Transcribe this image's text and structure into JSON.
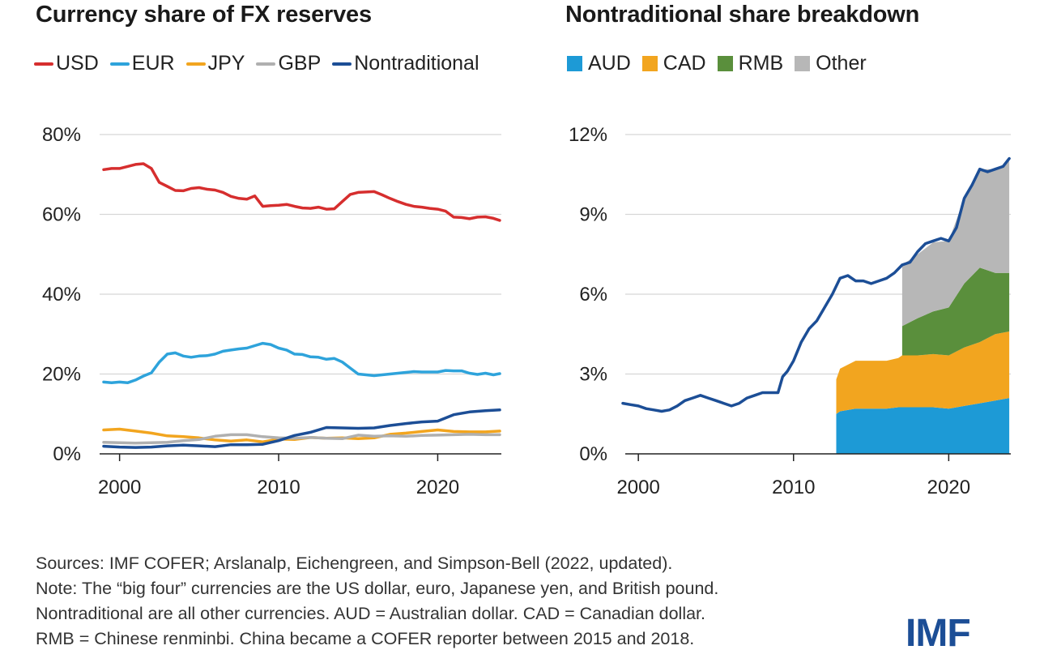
{
  "left_chart": {
    "title": "Currency share of FX reserves",
    "legend": [
      {
        "label": "USD",
        "color": "#d62e2e"
      },
      {
        "label": "EUR",
        "color": "#2ea3db"
      },
      {
        "label": "JPY",
        "color": "#f2a51f"
      },
      {
        "label": "GBP",
        "color": "#b0b0b0"
      },
      {
        "label": "Nontraditional",
        "color": "#1c4e96"
      }
    ],
    "y_ticks": [
      "80%",
      "60%",
      "40%",
      "20%",
      "0%"
    ],
    "x_ticks": [
      "2000",
      "2010",
      "2020"
    ]
  },
  "right_chart": {
    "title": "Nontraditional share breakdown",
    "legend": [
      {
        "label": "AUD",
        "color": "#1d9ad6"
      },
      {
        "label": "CAD",
        "color": "#f2a51f"
      },
      {
        "label": "RMB",
        "color": "#5a8f3c"
      },
      {
        "label": "Other",
        "color": "#b7b7b7"
      }
    ],
    "y_ticks": [
      "12%",
      "9%",
      "6%",
      "3%",
      "0%"
    ],
    "x_ticks": [
      "2000",
      "2010",
      "2020"
    ]
  },
  "chart_data": [
    {
      "type": "line",
      "title": "Currency share of FX reserves",
      "ylim": [
        0,
        80
      ],
      "xlim": [
        1999,
        2024
      ],
      "series": [
        {
          "name": "USD",
          "color": "#d62e2e",
          "x": [
            1999,
            1999.5,
            2000,
            2000.5,
            2001,
            2001.5,
            2002,
            2002.5,
            2003,
            2003.5,
            2004,
            2004.5,
            2005,
            2005.5,
            2006,
            2006.5,
            2007,
            2007.5,
            2008,
            2008.5,
            2009,
            2009.5,
            2010,
            2010.5,
            2011,
            2011.5,
            2012,
            2012.5,
            2013,
            2013.5,
            2014,
            2014.5,
            2015,
            2015.5,
            2016,
            2016.5,
            2017,
            2017.5,
            2018,
            2018.5,
            2019,
            2019.5,
            2020,
            2020.5,
            2021,
            2021.5,
            2022,
            2022.5,
            2023,
            2023.5,
            2023.9
          ],
          "values": [
            71.2,
            71.5,
            71.5,
            72,
            72.5,
            72.7,
            71.5,
            68,
            67,
            66,
            65.9,
            66.5,
            66.7,
            66.3,
            66.1,
            65.5,
            64.5,
            64,
            63.8,
            64.6,
            62,
            62.2,
            62.3,
            62.5,
            62,
            61.6,
            61.5,
            61.8,
            61.3,
            61.4,
            63.2,
            65,
            65.5,
            65.6,
            65.7,
            64.9,
            64,
            63.2,
            62.5,
            62,
            61.8,
            61.5,
            61.3,
            60.8,
            59.3,
            59.2,
            58.9,
            59.3,
            59.4,
            59,
            58.5
          ]
        },
        {
          "name": "EUR",
          "color": "#2ea3db",
          "x": [
            1999,
            1999.5,
            2000,
            2000.5,
            2001,
            2001.5,
            2002,
            2002.5,
            2003,
            2003.5,
            2004,
            2004.5,
            2005,
            2005.5,
            2006,
            2006.5,
            2007,
            2007.5,
            2008,
            2008.5,
            2009,
            2009.5,
            2010,
            2010.5,
            2011,
            2011.5,
            2012,
            2012.5,
            2013,
            2013.5,
            2014,
            2014.5,
            2015,
            2015.5,
            2016,
            2016.5,
            2017,
            2017.5,
            2018,
            2018.5,
            2019,
            2019.5,
            2020,
            2020.5,
            2021,
            2021.5,
            2022,
            2022.5,
            2023,
            2023.5,
            2023.9
          ],
          "values": [
            18,
            17.8,
            18,
            17.8,
            18.5,
            19.5,
            20.3,
            23,
            25,
            25.3,
            24.5,
            24.2,
            24.5,
            24.6,
            25,
            25.7,
            26,
            26.3,
            26.5,
            27.1,
            27.7,
            27.4,
            26.5,
            26,
            25,
            24.9,
            24.3,
            24.2,
            23.7,
            23.9,
            23,
            21.5,
            20,
            19.8,
            19.6,
            19.8,
            20,
            20.2,
            20.4,
            20.6,
            20.5,
            20.5,
            20.5,
            20.9,
            20.8,
            20.8,
            20.2,
            19.9,
            20.2,
            19.8,
            20.1
          ]
        },
        {
          "name": "JPY",
          "color": "#f2a51f",
          "x": [
            1999,
            2000,
            2001,
            2002,
            2003,
            2004,
            2005,
            2006,
            2007,
            2008,
            2009,
            2010,
            2011,
            2012,
            2013,
            2014,
            2015,
            2016,
            2017,
            2018,
            2019,
            2020,
            2021,
            2022,
            2023,
            2023.9
          ],
          "values": [
            6.0,
            6.2,
            5.7,
            5.2,
            4.5,
            4.3,
            4.0,
            3.5,
            3.2,
            3.5,
            3.0,
            3.7,
            3.6,
            4.1,
            3.9,
            4.0,
            3.8,
            4.0,
            4.9,
            5.2,
            5.6,
            6.0,
            5.6,
            5.5,
            5.5,
            5.7
          ]
        },
        {
          "name": "GBP",
          "color": "#b0b0b0",
          "x": [
            1999,
            2000,
            2001,
            2002,
            2003,
            2004,
            2005,
            2006,
            2007,
            2008,
            2009,
            2010,
            2011,
            2012,
            2013,
            2014,
            2015,
            2016,
            2017,
            2018,
            2019,
            2020,
            2021,
            2022,
            2023,
            2023.9
          ],
          "values": [
            2.9,
            2.8,
            2.7,
            2.8,
            2.9,
            3.3,
            3.6,
            4.4,
            4.8,
            4.8,
            4.3,
            4.0,
            3.9,
            4.1,
            3.9,
            3.8,
            4.7,
            4.4,
            4.5,
            4.4,
            4.6,
            4.7,
            4.8,
            4.9,
            4.8,
            4.8
          ]
        },
        {
          "name": "Nontraditional",
          "color": "#1c4e96",
          "x": [
            1999,
            2000,
            2001,
            2002,
            2003,
            2004,
            2005,
            2006,
            2007,
            2008,
            2009,
            2010,
            2011,
            2012,
            2013,
            2014,
            2015,
            2016,
            2017,
            2018,
            2019,
            2020,
            2021,
            2022,
            2023,
            2023.9
          ],
          "values": [
            1.9,
            1.7,
            1.6,
            1.7,
            2.0,
            2.2,
            2.0,
            1.8,
            2.3,
            2.3,
            2.4,
            3.3,
            4.6,
            5.4,
            6.6,
            6.5,
            6.4,
            6.5,
            7.1,
            7.6,
            8.0,
            8.2,
            9.8,
            10.5,
            10.8,
            11.0
          ]
        }
      ]
    },
    {
      "type": "area",
      "title": "Nontraditional share breakdown",
      "ylim": [
        0,
        12
      ],
      "xlim": [
        1999,
        2024
      ],
      "total_line": {
        "name": "Nontraditional",
        "color": "#1c4e96",
        "x": [
          1999,
          1999.5,
          2000,
          2000.5,
          2001,
          2001.5,
          2002,
          2002.5,
          2003,
          2003.5,
          2004,
          2004.5,
          2005,
          2005.5,
          2006,
          2006.5,
          2007,
          2007.5,
          2008,
          2008.5,
          2009,
          2009.3,
          2009.6,
          2010,
          2010.5,
          2011,
          2011.5,
          2012,
          2012.5,
          2013,
          2013.5,
          2014,
          2014.5,
          2015,
          2015.5,
          2016,
          2016.5,
          2017,
          2017.5,
          2018,
          2018.5,
          2019,
          2019.5,
          2020,
          2020.5,
          2021,
          2021.5,
          2022,
          2022.5,
          2023,
          2023.5,
          2023.9
        ],
        "values": [
          1.9,
          1.85,
          1.8,
          1.7,
          1.65,
          1.6,
          1.65,
          1.8,
          2.0,
          2.1,
          2.2,
          2.1,
          2.0,
          1.9,
          1.8,
          1.9,
          2.1,
          2.2,
          2.3,
          2.3,
          2.3,
          2.9,
          3.1,
          3.5,
          4.2,
          4.7,
          5.0,
          5.5,
          6.0,
          6.6,
          6.7,
          6.5,
          6.5,
          6.4,
          6.5,
          6.6,
          6.8,
          7.1,
          7.2,
          7.6,
          7.9,
          8.0,
          8.1,
          8.0,
          8.5,
          9.6,
          10.1,
          10.7,
          10.6,
          10.7,
          10.8,
          11.1
        ]
      },
      "x": [
        2012.75,
        2013,
        2014,
        2015,
        2016,
        2016.75,
        2017,
        2018,
        2019,
        2020,
        2021,
        2022,
        2023,
        2023.9
      ],
      "series": [
        {
          "name": "AUD",
          "color": "#1d9ad6",
          "values": [
            1.5,
            1.6,
            1.7,
            1.7,
            1.7,
            1.75,
            1.75,
            1.75,
            1.75,
            1.7,
            1.8,
            1.9,
            2.0,
            2.1
          ]
        },
        {
          "name": "CAD",
          "color": "#f2a51f",
          "values": [
            1.3,
            1.6,
            1.8,
            1.8,
            1.8,
            1.85,
            1.95,
            1.95,
            2.0,
            2.0,
            2.2,
            2.3,
            2.5,
            2.5
          ]
        },
        {
          "name": "RMB",
          "color": "#5a8f3c",
          "values": [
            0,
            0,
            0,
            0,
            0,
            0,
            1.1,
            1.4,
            1.6,
            1.8,
            2.4,
            2.8,
            2.3,
            2.2
          ]
        },
        {
          "name": "Other",
          "color": "#b7b7b7",
          "values": [
            0,
            0,
            0,
            0,
            0,
            0,
            2.3,
            2.4,
            2.6,
            2.5,
            3.2,
            3.7,
            3.9,
            4.2
          ]
        }
      ]
    }
  ],
  "footnote": {
    "line1": "Sources: IMF COFER; Arslanalp, Eichengreen, and Simpson-Bell (2022, updated).",
    "line2": "Note: The “big four” currencies are the US dollar, euro, Japanese yen, and British pound.",
    "line3": "Nontraditional are all other currencies. AUD = Australian dollar. CAD = Canadian dollar.",
    "line4": "RMB = Chinese renminbi. China became a COFER reporter between 2015 and 2018."
  },
  "logo": "IMF"
}
